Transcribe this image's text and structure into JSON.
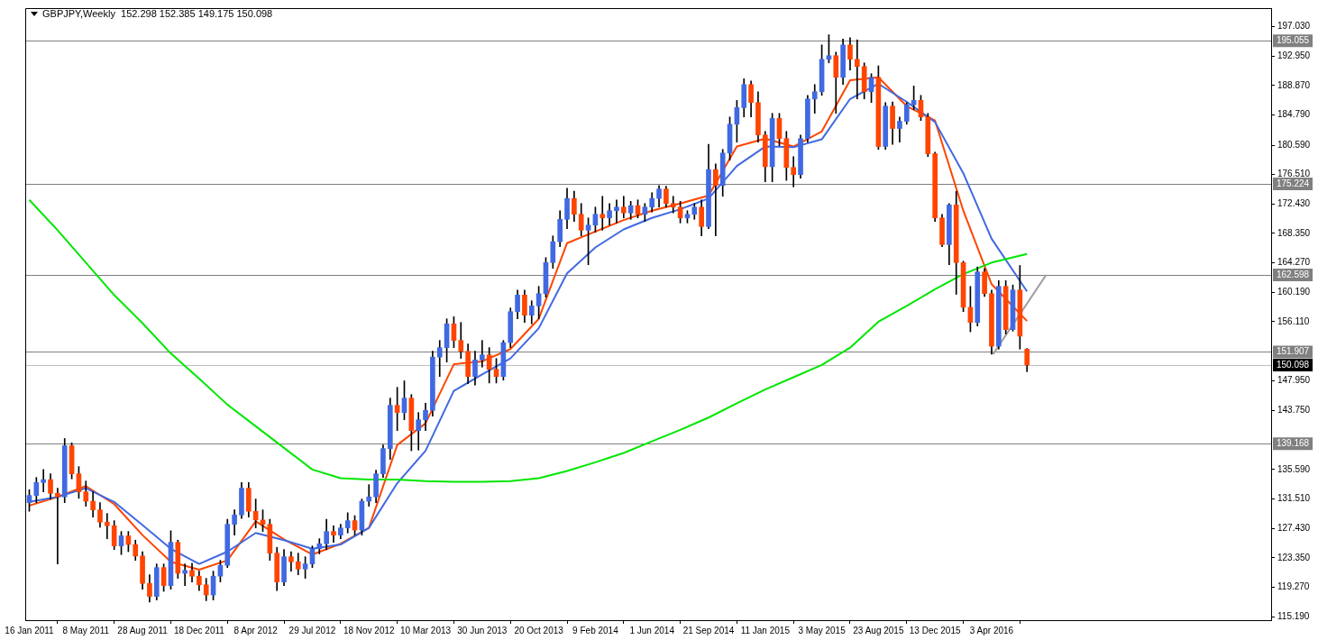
{
  "chart_data": {
    "type": "candlestick",
    "title": "GBPJPY,Weekly  152.298 152.385 149.175 150.098",
    "x": [
      "2011-01-16",
      "2011-01-30",
      "2011-02-13",
      "2011-02-27",
      "2011-03-13",
      "2011-03-27",
      "2011-04-10",
      "2011-04-24",
      "2011-05-08",
      "2011-05-22",
      "2011-06-05",
      "2011-06-19",
      "2011-07-03",
      "2011-07-17",
      "2011-07-31",
      "2011-08-14",
      "2011-08-28",
      "2011-09-11",
      "2011-09-25",
      "2011-10-09",
      "2011-10-23",
      "2011-11-06",
      "2011-11-20",
      "2011-12-04",
      "2011-12-18",
      "2012-01-01",
      "2012-01-15",
      "2012-01-29",
      "2012-02-12",
      "2012-02-26",
      "2012-03-11",
      "2012-03-25",
      "2012-04-08",
      "2012-04-22",
      "2012-05-06",
      "2012-05-20",
      "2012-06-03",
      "2012-06-17",
      "2012-07-01",
      "2012-07-15",
      "2012-07-29",
      "2012-08-12",
      "2012-08-26",
      "2012-09-09",
      "2012-09-23",
      "2012-10-07",
      "2012-10-21",
      "2012-11-04",
      "2012-11-18",
      "2012-12-02",
      "2012-12-16",
      "2012-12-30",
      "2013-01-13",
      "2013-01-27",
      "2013-02-10",
      "2013-02-24",
      "2013-03-10",
      "2013-03-24",
      "2013-04-07",
      "2013-04-21",
      "2013-05-05",
      "2013-05-19",
      "2013-06-02",
      "2013-06-16",
      "2013-06-30",
      "2013-07-14",
      "2013-07-28",
      "2013-08-11",
      "2013-08-25",
      "2013-09-08",
      "2013-09-22",
      "2013-10-06",
      "2013-10-20",
      "2013-11-03",
      "2013-11-17",
      "2013-12-01",
      "2013-12-15",
      "2013-12-29",
      "2014-01-12",
      "2014-01-26",
      "2014-02-09",
      "2014-02-23",
      "2014-03-09",
      "2014-03-23",
      "2014-04-06",
      "2014-04-20",
      "2014-05-04",
      "2014-05-18",
      "2014-06-01",
      "2014-06-15",
      "2014-06-29",
      "2014-07-13",
      "2014-07-27",
      "2014-08-10",
      "2014-08-24",
      "2014-09-07",
      "2014-09-21",
      "2014-10-05",
      "2014-10-19",
      "2014-11-02",
      "2014-11-16",
      "2014-11-30",
      "2014-12-14",
      "2014-12-28",
      "2015-01-11",
      "2015-01-25",
      "2015-02-08",
      "2015-02-22",
      "2015-03-08",
      "2015-03-22",
      "2015-04-05",
      "2015-04-19",
      "2015-05-03",
      "2015-05-17",
      "2015-05-31",
      "2015-06-14",
      "2015-06-28",
      "2015-07-12",
      "2015-07-26",
      "2015-08-09",
      "2015-08-23",
      "2015-09-06",
      "2015-09-20",
      "2015-10-04",
      "2015-10-18",
      "2015-11-01",
      "2015-11-15",
      "2015-11-29",
      "2015-12-13",
      "2015-12-27",
      "2016-01-10",
      "2016-01-24",
      "2016-02-07",
      "2016-02-21",
      "2016-03-06",
      "2016-03-20",
      "2016-04-03",
      "2016-04-17",
      "2016-05-01",
      "2016-05-15",
      "2016-05-29",
      "2016-06-12"
    ],
    "ohlc": [
      [
        131.0,
        132.8,
        129.8,
        132.0
      ],
      [
        132.0,
        134.5,
        131.0,
        133.8
      ],
      [
        133.8,
        135.6,
        132.5,
        134.2
      ],
      [
        134.2,
        135.0,
        131.5,
        132.3
      ],
      [
        132.3,
        133.0,
        122.5,
        131.8
      ],
      [
        131.8,
        139.9,
        131.0,
        138.9
      ],
      [
        138.9,
        139.3,
        134.3,
        135.0
      ],
      [
        135.0,
        136.0,
        131.6,
        132.5
      ],
      [
        132.5,
        134.0,
        130.5,
        131.2
      ],
      [
        131.2,
        132.5,
        129.0,
        130.0
      ],
      [
        130.0,
        131.0,
        127.6,
        128.3
      ],
      [
        128.3,
        129.5,
        126.0,
        127.8
      ],
      [
        127.8,
        128.5,
        124.5,
        125.0
      ],
      [
        125.0,
        127.0,
        123.8,
        126.4
      ],
      [
        126.4,
        127.0,
        124.2,
        125.2
      ],
      [
        125.2,
        125.8,
        123.0,
        123.6
      ],
      [
        123.6,
        124.2,
        119.0,
        119.8
      ],
      [
        119.8,
        121.0,
        117.2,
        118.0
      ],
      [
        118.0,
        122.5,
        117.5,
        122.0
      ],
      [
        122.0,
        122.5,
        118.7,
        119.5
      ],
      [
        119.5,
        127.1,
        119.0,
        125.5
      ],
      [
        125.5,
        125.8,
        120.5,
        121.2
      ],
      [
        121.2,
        122.5,
        119.5,
        121.6
      ],
      [
        121.6,
        122.6,
        120.0,
        120.8
      ],
      [
        120.8,
        121.5,
        118.8,
        119.6
      ],
      [
        119.6,
        120.5,
        117.4,
        118.2
      ],
      [
        118.2,
        121.5,
        117.5,
        120.8
      ],
      [
        120.8,
        123.0,
        120.0,
        122.3
      ],
      [
        122.3,
        128.7,
        122.0,
        128.0
      ],
      [
        128.0,
        130.0,
        126.5,
        129.3
      ],
      [
        129.3,
        133.8,
        128.8,
        133.0
      ],
      [
        133.0,
        133.8,
        129.0,
        129.8
      ],
      [
        129.8,
        131.5,
        127.5,
        128.6
      ],
      [
        128.6,
        130.0,
        127.0,
        128.0
      ],
      [
        128.0,
        128.7,
        123.0,
        124.0
      ],
      [
        124.0,
        124.8,
        118.8,
        120.0
      ],
      [
        120.0,
        124.5,
        119.5,
        123.5
      ],
      [
        123.5,
        124.2,
        121.5,
        122.8
      ],
      [
        122.8,
        124.0,
        121.0,
        121.8
      ],
      [
        121.8,
        123.5,
        120.5,
        122.5
      ],
      [
        122.5,
        125.0,
        122.0,
        124.6
      ],
      [
        124.6,
        126.0,
        123.9,
        125.3
      ],
      [
        125.3,
        128.7,
        124.5,
        127.0
      ],
      [
        127.0,
        127.8,
        125.5,
        126.5
      ],
      [
        126.5,
        128.0,
        126.0,
        127.5
      ],
      [
        127.5,
        129.6,
        126.8,
        128.5
      ],
      [
        128.5,
        129.2,
        126.5,
        127.2
      ],
      [
        127.2,
        131.5,
        126.5,
        131.2
      ],
      [
        131.2,
        133.5,
        130.5,
        131.8
      ],
      [
        131.8,
        135.5,
        131.0,
        135.0
      ],
      [
        135.0,
        139.0,
        134.5,
        138.5
      ],
      [
        138.5,
        145.5,
        137.0,
        144.5
      ],
      [
        144.5,
        147.0,
        141.0,
        143.5
      ],
      [
        143.5,
        147.9,
        142.5,
        145.5
      ],
      [
        145.5,
        146.0,
        138.2,
        141.0
      ],
      [
        141.0,
        143.5,
        138.3,
        142.5
      ],
      [
        142.5,
        144.8,
        141.0,
        143.8
      ],
      [
        143.8,
        152.0,
        143.0,
        151.2
      ],
      [
        151.2,
        153.5,
        148.5,
        152.5
      ],
      [
        152.5,
        156.5,
        150.5,
        155.8
      ],
      [
        155.8,
        156.8,
        152.5,
        153.5
      ],
      [
        153.5,
        156.0,
        151.0,
        152.0
      ],
      [
        152.0,
        153.0,
        147.5,
        148.5
      ],
      [
        148.5,
        152.0,
        147.3,
        150.8
      ],
      [
        150.8,
        153.5,
        149.8,
        151.5
      ],
      [
        151.5,
        152.5,
        147.6,
        149.5
      ],
      [
        149.5,
        151.0,
        147.6,
        148.5
      ],
      [
        148.5,
        153.5,
        148.0,
        153.2
      ],
      [
        153.2,
        158.0,
        152.5,
        157.5
      ],
      [
        157.5,
        160.5,
        156.5,
        159.8
      ],
      [
        159.8,
        160.5,
        156.0,
        157.0
      ],
      [
        157.0,
        159.0,
        155.8,
        158.3
      ],
      [
        158.3,
        161.0,
        156.5,
        160.0
      ],
      [
        160.0,
        165.0,
        159.5,
        164.3
      ],
      [
        164.3,
        168.0,
        163.5,
        167.2
      ],
      [
        167.2,
        171.5,
        166.5,
        170.3
      ],
      [
        170.3,
        174.6,
        169.0,
        173.2
      ],
      [
        173.2,
        174.2,
        170.0,
        171.0
      ],
      [
        171.0,
        172.5,
        168.0,
        168.8
      ],
      [
        168.8,
        170.5,
        164.0,
        169.5
      ],
      [
        169.5,
        172.0,
        168.5,
        171.0
      ],
      [
        171.0,
        173.5,
        168.8,
        170.5
      ],
      [
        170.5,
        172.5,
        169.5,
        171.5
      ],
      [
        171.5,
        173.0,
        169.8,
        172.0
      ],
      [
        172.0,
        173.5,
        170.5,
        171.2
      ],
      [
        171.2,
        172.8,
        170.3,
        172.2
      ],
      [
        172.2,
        173.0,
        170.5,
        171.0
      ],
      [
        171.0,
        172.5,
        170.0,
        172.0
      ],
      [
        172.0,
        174.0,
        171.3,
        173.2
      ],
      [
        173.2,
        175.0,
        172.0,
        174.5
      ],
      [
        174.5,
        174.9,
        172.0,
        172.5
      ],
      [
        172.5,
        173.5,
        171.2,
        172.0
      ],
      [
        172.0,
        172.8,
        169.8,
        170.5
      ],
      [
        170.5,
        171.5,
        169.8,
        171.0
      ],
      [
        171.0,
        172.5,
        170.3,
        172.0
      ],
      [
        172.0,
        173.0,
        168.0,
        169.3
      ],
      [
        169.3,
        180.7,
        169.0,
        177.2
      ],
      [
        177.2,
        178.0,
        168.0,
        175.0
      ],
      [
        175.0,
        180.0,
        173.5,
        179.5
      ],
      [
        179.5,
        184.5,
        178.5,
        183.5
      ],
      [
        183.5,
        186.8,
        181.0,
        185.8
      ],
      [
        185.8,
        189.8,
        184.5,
        189.0
      ],
      [
        189.0,
        189.5,
        184.5,
        186.5
      ],
      [
        186.5,
        188.0,
        181.0,
        182.0
      ],
      [
        182.0,
        182.5,
        175.5,
        177.6
      ],
      [
        177.6,
        185.0,
        175.5,
        184.3
      ],
      [
        184.3,
        185.0,
        180.5,
        181.5
      ],
      [
        181.5,
        182.5,
        175.7,
        177.5
      ],
      [
        177.5,
        179.0,
        174.8,
        176.5
      ],
      [
        176.5,
        182.0,
        176.0,
        181.5
      ],
      [
        181.5,
        187.5,
        181.0,
        187.0
      ],
      [
        187.0,
        189.0,
        185.0,
        188.0
      ],
      [
        188.0,
        194.5,
        187.5,
        192.5
      ],
      [
        192.5,
        195.9,
        192.0,
        193.0
      ],
      [
        193.0,
        193.5,
        185.0,
        190.0
      ],
      [
        190.0,
        195.3,
        189.0,
        194.5
      ],
      [
        194.5,
        195.5,
        191.0,
        192.5
      ],
      [
        192.5,
        195.2,
        187.0,
        191.5
      ],
      [
        191.5,
        192.0,
        187.0,
        188.0
      ],
      [
        188.0,
        190.5,
        186.5,
        190.0
      ],
      [
        190.0,
        191.6,
        180.0,
        180.4
      ],
      [
        180.4,
        186.5,
        180.0,
        186.0
      ],
      [
        186.0,
        186.6,
        180.7,
        182.9
      ],
      [
        182.9,
        184.5,
        181.0,
        183.9
      ],
      [
        183.9,
        186.5,
        183.5,
        186.2
      ],
      [
        186.2,
        188.8,
        185.5,
        186.8
      ],
      [
        186.8,
        187.5,
        184.0,
        184.5
      ],
      [
        184.5,
        185.0,
        179.0,
        179.4
      ],
      [
        179.4,
        179.6,
        170.0,
        170.5
      ],
      [
        170.5,
        171.0,
        166.5,
        166.8
      ],
      [
        166.8,
        172.5,
        164.0,
        172.3
      ],
      [
        172.3,
        174.2,
        159.9,
        164.3
      ],
      [
        164.3,
        164.5,
        157.5,
        158.1
      ],
      [
        158.1,
        161.0,
        154.7,
        156.0
      ],
      [
        156.0,
        163.7,
        155.5,
        163.0
      ],
      [
        163.0,
        163.5,
        159.6,
        160.0
      ],
      [
        160.0,
        160.5,
        151.6,
        152.7
      ],
      [
        152.7,
        161.8,
        152.3,
        161.0
      ],
      [
        161.0,
        161.8,
        154.4,
        155.0
      ],
      [
        155.0,
        161.2,
        154.8,
        160.5
      ],
      [
        160.5,
        163.9,
        152.3,
        154.1
      ],
      [
        152.298,
        152.385,
        149.175,
        150.098
      ]
    ],
    "colors": [
      "#4169e1",
      "#4169e1",
      "#4169e1",
      "#ff4500",
      "#ff4500",
      "#4169e1",
      "#ff4500",
      "#ff4500",
      "#ff4500",
      "#ff4500",
      "#ff4500",
      "#ff4500",
      "#ff4500",
      "#4169e1",
      "#ff4500",
      "#ff4500",
      "#ff4500",
      "#ff4500",
      "#4169e1",
      "#ff4500",
      "#4169e1",
      "#ff4500",
      "#4169e1",
      "#ff4500",
      "#ff4500",
      "#ff4500",
      "#4169e1",
      "#4169e1",
      "#4169e1",
      "#4169e1",
      "#4169e1",
      "#ff4500",
      "#ff4500",
      "#ff4500",
      "#ff4500",
      "#ff4500",
      "#4169e1",
      "#ff4500",
      "#ff4500",
      "#4169e1",
      "#4169e1",
      "#4169e1",
      "#4169e1",
      "#ff4500",
      "#4169e1",
      "#4169e1",
      "#ff4500",
      "#4169e1",
      "#4169e1",
      "#4169e1",
      "#4169e1",
      "#4169e1",
      "#ff4500",
      "#4169e1",
      "#ff4500",
      "#4169e1",
      "#4169e1",
      "#4169e1",
      "#4169e1",
      "#4169e1",
      "#ff4500",
      "#ff4500",
      "#ff4500",
      "#4169e1",
      "#4169e1",
      "#ff4500",
      "#ff4500",
      "#4169e1",
      "#4169e1",
      "#4169e1",
      "#ff4500",
      "#4169e1",
      "#4169e1",
      "#4169e1",
      "#4169e1",
      "#4169e1",
      "#4169e1",
      "#ff4500",
      "#ff4500",
      "#4169e1",
      "#4169e1",
      "#ff4500",
      "#4169e1",
      "#4169e1",
      "#ff4500",
      "#4169e1",
      "#ff4500",
      "#4169e1",
      "#4169e1",
      "#4169e1",
      "#ff4500",
      "#ff4500",
      "#ff4500",
      "#4169e1",
      "#4169e1",
      "#ff4500",
      "#4169e1",
      "#ff4500",
      "#4169e1",
      "#4169e1",
      "#4169e1",
      "#4169e1",
      "#ff4500",
      "#ff4500",
      "#ff4500",
      "#4169e1",
      "#ff4500",
      "#ff4500",
      "#ff4500",
      "#4169e1",
      "#4169e1",
      "#4169e1",
      "#4169e1",
      "#4169e1",
      "#ff4500",
      "#4169e1",
      "#ff4500",
      "#ff4500",
      "#ff4500",
      "#4169e1",
      "#ff4500",
      "#4169e1",
      "#ff4500",
      "#4169e1",
      "#4169e1",
      "#4169e1",
      "#ff4500",
      "#ff4500",
      "#ff4500",
      "#ff4500",
      "#4169e1",
      "#ff4500",
      "#ff4500",
      "#ff4500",
      "#4169e1",
      "#ff4500",
      "#ff4500",
      "#4169e1",
      "#ff4500",
      "#4169e1",
      "#ff4500",
      "#ff4500"
    ],
    "series": [
      {
        "type": "line",
        "color": "#00e600",
        "x": [
          "2011-01-16",
          "2011-03-13",
          "2011-05-08",
          "2011-07-03",
          "2011-08-28",
          "2011-10-23",
          "2011-12-18",
          "2012-02-12",
          "2012-04-08",
          "2012-06-03",
          "2012-07-29",
          "2012-09-23",
          "2012-11-18",
          "2013-01-13",
          "2013-03-10",
          "2013-05-05",
          "2013-06-30",
          "2013-08-25",
          "2013-10-20",
          "2013-12-15",
          "2014-02-09",
          "2014-04-06",
          "2014-06-01",
          "2014-07-27",
          "2014-09-21",
          "2014-11-16",
          "2015-01-11",
          "2015-03-08",
          "2015-05-03",
          "2015-06-28",
          "2015-08-23",
          "2015-10-18",
          "2015-12-13",
          "2016-02-07",
          "2016-04-03",
          "2016-06-12"
        ],
        "values": [
          173.0,
          168.8,
          164.3,
          159.8,
          155.9,
          151.7,
          148.2,
          144.6,
          141.6,
          138.6,
          135.6,
          134.4,
          134.2,
          134.2,
          134.0,
          133.9,
          133.9,
          134.0,
          134.4,
          135.4,
          136.6,
          137.9,
          139.5,
          141.1,
          142.8,
          144.8,
          146.7,
          148.4,
          150.1,
          152.5,
          156.1,
          158.3,
          160.6,
          162.7,
          164.3,
          165.5
        ]
      },
      {
        "type": "line",
        "color": "#4169e1",
        "x": [
          "2011-01-16",
          "2011-03-13",
          "2011-05-08",
          "2011-07-03",
          "2011-08-28",
          "2011-10-23",
          "2011-12-18",
          "2012-02-12",
          "2012-04-08",
          "2012-06-03",
          "2012-07-29",
          "2012-09-23",
          "2012-11-18",
          "2013-01-13",
          "2013-03-10",
          "2013-05-05",
          "2013-06-30",
          "2013-08-25",
          "2013-10-20",
          "2013-12-15",
          "2014-02-09",
          "2014-04-06",
          "2014-06-01",
          "2014-07-27",
          "2014-09-21",
          "2014-11-16",
          "2015-01-11",
          "2015-03-08",
          "2015-05-03",
          "2015-06-28",
          "2015-08-23",
          "2015-10-18",
          "2015-12-13",
          "2016-02-07",
          "2016-04-03",
          "2016-06-12"
        ],
        "values": [
          131.1,
          131.8,
          133.0,
          131.1,
          127.9,
          124.6,
          122.5,
          124.2,
          126.8,
          125.8,
          124.6,
          125.2,
          127.5,
          133.7,
          138.2,
          146.5,
          148.8,
          151.0,
          155.2,
          162.8,
          166.4,
          168.9,
          170.5,
          171.7,
          173.2,
          177.7,
          180.4,
          180.3,
          181.4,
          187.0,
          189.1,
          186.6,
          183.8,
          176.7,
          167.6,
          160.3
        ]
      },
      {
        "type": "line",
        "color": "#ff4500",
        "x": [
          "2011-01-16",
          "2011-03-13",
          "2011-05-08",
          "2011-07-03",
          "2011-08-28",
          "2011-10-23",
          "2011-12-18",
          "2012-02-12",
          "2012-04-08",
          "2012-06-03",
          "2012-07-29",
          "2012-09-23",
          "2012-11-18",
          "2013-01-13",
          "2013-03-10",
          "2013-05-05",
          "2013-06-30",
          "2013-08-25",
          "2013-10-20",
          "2013-12-15",
          "2014-02-09",
          "2014-04-06",
          "2014-06-01",
          "2014-07-27",
          "2014-09-21",
          "2014-11-16",
          "2015-01-11",
          "2015-03-08",
          "2015-05-03",
          "2015-06-28",
          "2015-08-23",
          "2015-10-18",
          "2015-12-13",
          "2016-02-07",
          "2016-04-03",
          "2016-06-12"
        ],
        "values": [
          130.6,
          131.8,
          133.3,
          130.8,
          126.5,
          122.8,
          121.7,
          123.0,
          128.4,
          125.9,
          123.8,
          125.3,
          127.5,
          139.0,
          142.0,
          150.2,
          150.6,
          152.3,
          156.5,
          167.0,
          168.6,
          170.2,
          171.5,
          172.5,
          173.6,
          180.4,
          181.5,
          180.4,
          182.5,
          189.6,
          190.0,
          186.0,
          184.0,
          171.5,
          161.3,
          156.2
        ]
      },
      {
        "type": "line",
        "color": "#a0a0a0",
        "x": [
          "2016-04-06",
          "2016-07-20"
        ],
        "values": [
          151.6,
          162.6
        ]
      }
    ],
    "ref_lines": [
      {
        "axis": "y",
        "value": 195.055,
        "label": "195.055",
        "color": "#808080"
      },
      {
        "axis": "y",
        "value": 175.224,
        "label": "175.224",
        "color": "#808080"
      },
      {
        "axis": "y",
        "value": 162.598,
        "label": "162.598",
        "color": "#808080"
      },
      {
        "axis": "y",
        "value": 151.907,
        "label": "151.907",
        "color": "#808080"
      },
      {
        "axis": "y",
        "value": 139.168,
        "label": "139.168",
        "color": "#808080"
      },
      {
        "axis": "y",
        "value": 150.098,
        "label": "150.098",
        "color": "#c0c0c0"
      }
    ],
    "xlim": [
      "2011-01-08",
      "2017-10-08"
    ],
    "ylim": [
      114.7,
      199.6
    ],
    "xticks": [
      {
        "value": "2011-01-16",
        "label": "16 Jan 2011"
      },
      {
        "value": "2011-05-08",
        "label": "8 May 2011"
      },
      {
        "value": "2011-08-28",
        "label": "28 Aug 2011"
      },
      {
        "value": "2011-12-18",
        "label": "18 Dec 2011"
      },
      {
        "value": "2012-04-08",
        "label": "8 Apr 2012"
      },
      {
        "value": "2012-07-29",
        "label": "29 Jul 2012"
      },
      {
        "value": "2012-11-18",
        "label": "18 Nov 2012"
      },
      {
        "value": "2013-03-10",
        "label": "10 Mar 2013"
      },
      {
        "value": "2013-06-30",
        "label": "30 Jun 2013"
      },
      {
        "value": "2013-10-20",
        "label": "20 Oct 2013"
      },
      {
        "value": "2014-02-09",
        "label": "9 Feb 2014"
      },
      {
        "value": "2014-06-01",
        "label": "1 Jun 2014"
      },
      {
        "value": "2014-09-21",
        "label": "21 Sep 2014"
      },
      {
        "value": "2015-01-11",
        "label": "11 Jan 2015"
      },
      {
        "value": "2015-05-03",
        "label": "3 May 2015"
      },
      {
        "value": "2015-08-23",
        "label": "23 Aug 2015"
      },
      {
        "value": "2015-12-13",
        "label": "13 Dec 2015"
      },
      {
        "value": "2016-04-03",
        "label": "3 Apr 2016"
      }
    ],
    "yticks": [
      {
        "value": 197.03,
        "label": "197.030"
      },
      {
        "value": 192.95,
        "label": "192.950"
      },
      {
        "value": 188.87,
        "label": "188.870"
      },
      {
        "value": 184.79,
        "label": "184.790"
      },
      {
        "value": 180.59,
        "label": "180.590"
      },
      {
        "value": 176.51,
        "label": "176.510"
      },
      {
        "value": 172.43,
        "label": "172.430"
      },
      {
        "value": 168.35,
        "label": "168.350"
      },
      {
        "value": 164.27,
        "label": "164.270"
      },
      {
        "value": 160.19,
        "label": "160.190"
      },
      {
        "value": 156.11,
        "label": "156.110"
      },
      {
        "value": 147.95,
        "label": "147.950"
      },
      {
        "value": 143.75,
        "label": "143.750"
      },
      {
        "value": 135.59,
        "label": "135.590"
      },
      {
        "value": 131.51,
        "label": "131.510"
      },
      {
        "value": 127.43,
        "label": "127.430"
      },
      {
        "value": 123.35,
        "label": "123.350"
      },
      {
        "value": 119.27,
        "label": "119.270"
      },
      {
        "value": 115.19,
        "label": "115.190"
      }
    ],
    "grid": false,
    "legend": false
  }
}
